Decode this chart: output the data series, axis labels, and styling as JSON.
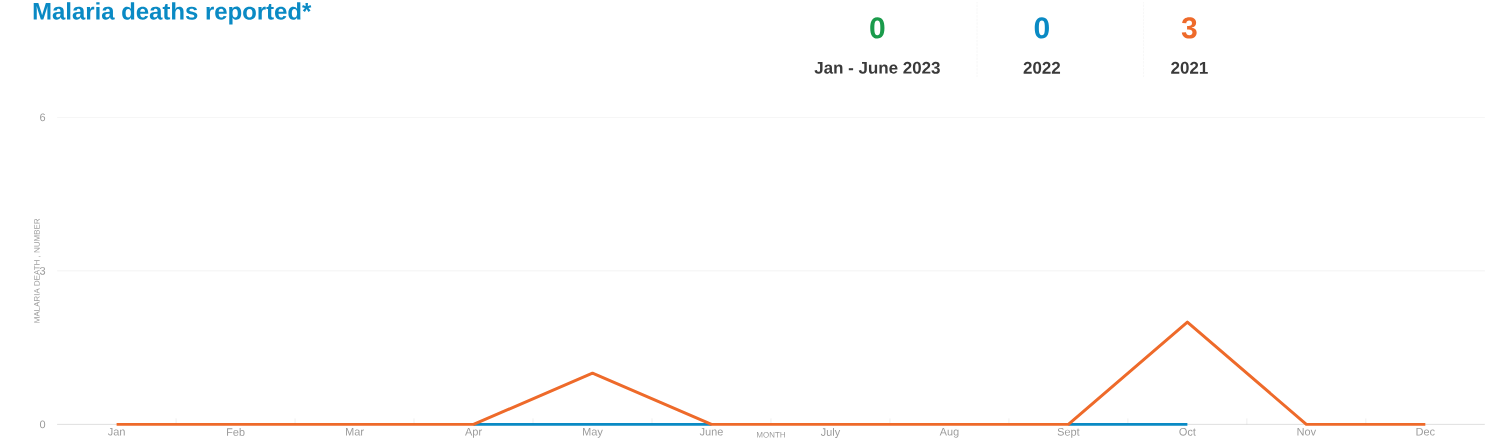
{
  "chart_data": {
    "type": "line",
    "title": "Malaria deaths reported*",
    "xlabel": "MONTH",
    "ylabel": "MALARIA DEATH , NUMBER",
    "categories": [
      "Jan",
      "Feb",
      "Mar",
      "Apr",
      "May",
      "June",
      "July",
      "Aug",
      "Sept",
      "Oct",
      "Nov",
      "Dec"
    ],
    "series": [
      {
        "color": "#0a8ac4",
        "values": [
          null,
          null,
          null,
          0,
          0,
          0,
          null,
          null,
          0,
          0,
          null,
          null
        ]
      },
      {
        "color": "#ee6a2a",
        "values": [
          0,
          0,
          0,
          0,
          1,
          0,
          0,
          0,
          0,
          2,
          0,
          0
        ]
      }
    ],
    "ylim": [
      0,
      6
    ],
    "yticks": [
      0,
      3,
      6
    ],
    "grid": "y",
    "marker": "none",
    "line_style": "solid",
    "annotations": [
      "0",
      "Jan - June 2023",
      "0",
      "2022",
      "3",
      "2021"
    ]
  }
}
